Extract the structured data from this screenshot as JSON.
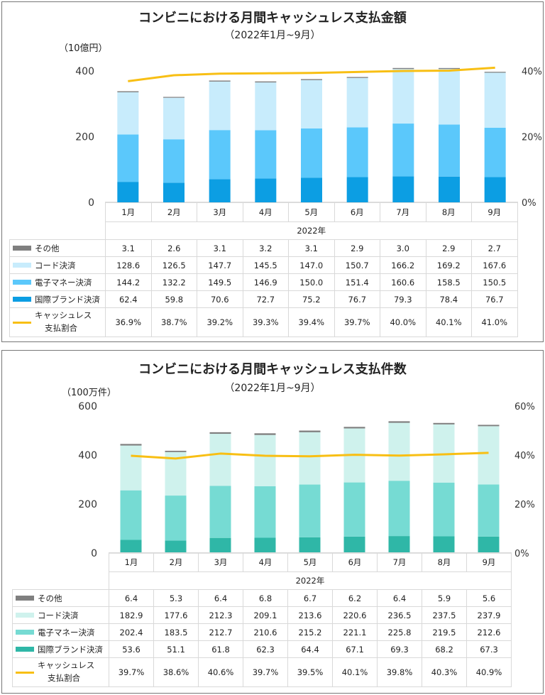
{
  "charts": [
    {
      "title": "コンビニにおける月間キャッシュレス支払金額",
      "subtitle": "（2022年1月~9月）",
      "unit_left": "（10億円）",
      "year_label": "2022年",
      "ylim": [
        0,
        400
      ],
      "yticks": [
        "0",
        "200",
        "400"
      ],
      "y2lim": [
        0,
        40
      ],
      "y2ticks": [
        "0%",
        "20%",
        "40%"
      ],
      "months": [
        "1月",
        "2月",
        "3月",
        "4月",
        "5月",
        "6月",
        "7月",
        "8月",
        "9月"
      ],
      "stack_order": [
        "国際ブランド決済",
        "電子マネー決済",
        "コード決済",
        "その他"
      ],
      "rows": [
        {
          "label": "その他",
          "color": "#7f7f7f",
          "kind": "bar",
          "cells": [
            "3.1",
            "2.6",
            "3.1",
            "3.2",
            "3.1",
            "2.9",
            "3.0",
            "2.9",
            "2.7"
          ]
        },
        {
          "label": "コード決済",
          "color": "#c8ecfc",
          "kind": "bar",
          "cells": [
            "128.6",
            "126.5",
            "147.7",
            "145.5",
            "147.0",
            "150.7",
            "166.2",
            "169.2",
            "167.6"
          ]
        },
        {
          "label": "電子マネー決済",
          "color": "#5bc8fb",
          "kind": "bar",
          "cells": [
            "144.2",
            "132.2",
            "149.5",
            "146.9",
            "150.0",
            "151.4",
            "160.6",
            "158.5",
            "150.5"
          ]
        },
        {
          "label": "国際ブランド決済",
          "color": "#0c9ee3",
          "kind": "bar",
          "cells": [
            "62.4",
            "59.8",
            "70.6",
            "72.7",
            "75.2",
            "76.7",
            "79.3",
            "78.4",
            "76.7"
          ]
        },
        {
          "label": "キャッシュレス|支払割合",
          "color": "#f8bf14",
          "kind": "line",
          "cells": [
            "36.9%",
            "38.7%",
            "39.2%",
            "39.3%",
            "39.4%",
            "39.7%",
            "40.0%",
            "40.1%",
            "41.0%"
          ]
        }
      ],
      "chart_data": {
        "type": "bar",
        "title": "コンビニにおける月間キャッシュレス支払金額",
        "ylabel": "（10億円）",
        "categories": [
          "1月",
          "2月",
          "3月",
          "4月",
          "5月",
          "6月",
          "7月",
          "8月",
          "9月"
        ],
        "ylim": [
          0,
          400
        ],
        "y2lim": [
          0,
          0.4
        ],
        "series": [
          {
            "name": "国際ブランド決済",
            "values": [
              62.4,
              59.8,
              70.6,
              72.7,
              75.2,
              76.7,
              79.3,
              78.4,
              76.7
            ]
          },
          {
            "name": "電子マネー決済",
            "values": [
              144.2,
              132.2,
              149.5,
              146.9,
              150.0,
              151.4,
              160.6,
              158.5,
              150.5
            ]
          },
          {
            "name": "コード決済",
            "values": [
              128.6,
              126.5,
              147.7,
              145.5,
              147.0,
              150.7,
              166.2,
              169.2,
              167.6
            ]
          },
          {
            "name": "その他",
            "values": [
              3.1,
              2.6,
              3.1,
              3.2,
              3.1,
              2.9,
              3.0,
              2.9,
              2.7
            ]
          },
          {
            "name": "キャッシュレス支払割合",
            "type": "line",
            "axis": "right",
            "values": [
              0.369,
              0.387,
              0.392,
              0.393,
              0.394,
              0.397,
              0.4,
              0.401,
              0.41
            ]
          }
        ]
      }
    },
    {
      "title": "コンビニにおける月間キャッシュレス支払件数",
      "subtitle": "（2022年1月~9月）",
      "unit_left": "（100万件）",
      "year_label": "2022年",
      "ylim": [
        0,
        600
      ],
      "yticks": [
        "0",
        "200",
        "400",
        "600"
      ],
      "y2lim": [
        0,
        60
      ],
      "y2ticks": [
        "0%",
        "20%",
        "40%",
        "60%"
      ],
      "months": [
        "1月",
        "2月",
        "3月",
        "4月",
        "5月",
        "6月",
        "7月",
        "8月",
        "9月"
      ],
      "stack_order": [
        "国際ブランド決済",
        "電子マネー決済",
        "コード決済",
        "その他"
      ],
      "rows": [
        {
          "label": "その他",
          "color": "#7f7f7f",
          "kind": "bar",
          "cells": [
            "6.4",
            "5.3",
            "6.4",
            "6.8",
            "6.7",
            "6.2",
            "6.4",
            "5.9",
            "5.6"
          ]
        },
        {
          "label": "コード決済",
          "color": "#cff2ed",
          "kind": "bar",
          "cells": [
            "182.9",
            "177.6",
            "212.3",
            "209.1",
            "213.6",
            "220.6",
            "236.5",
            "237.5",
            "237.9"
          ]
        },
        {
          "label": "電子マネー決済",
          "color": "#76dbd3",
          "kind": "bar",
          "cells": [
            "202.4",
            "183.5",
            "212.7",
            "210.6",
            "215.2",
            "221.1",
            "225.8",
            "219.5",
            "212.6"
          ]
        },
        {
          "label": "国際ブランド決済",
          "color": "#2fb7a7",
          "kind": "bar",
          "cells": [
            "53.6",
            "51.1",
            "61.8",
            "62.3",
            "64.4",
            "67.1",
            "69.3",
            "68.2",
            "67.3"
          ]
        },
        {
          "label": "キャッシュレス|支払割合",
          "color": "#f8bf14",
          "kind": "line",
          "cells": [
            "39.7%",
            "38.6%",
            "40.6%",
            "39.7%",
            "39.5%",
            "40.1%",
            "39.8%",
            "40.3%",
            "40.9%"
          ]
        }
      ],
      "chart_data": {
        "type": "bar",
        "title": "コンビニにおける月間キャッシュレス支払件数",
        "ylabel": "（100万件）",
        "categories": [
          "1月",
          "2月",
          "3月",
          "4月",
          "5月",
          "6月",
          "7月",
          "8月",
          "9月"
        ],
        "ylim": [
          0,
          600
        ],
        "y2lim": [
          0,
          0.6
        ],
        "series": [
          {
            "name": "国際ブランド決済",
            "values": [
              53.6,
              51.1,
              61.8,
              62.3,
              64.4,
              67.1,
              69.3,
              68.2,
              67.3
            ]
          },
          {
            "name": "電子マネー決済",
            "values": [
              202.4,
              183.5,
              212.7,
              210.6,
              215.2,
              221.1,
              225.8,
              219.5,
              212.6
            ]
          },
          {
            "name": "コード決済",
            "values": [
              182.9,
              177.6,
              212.3,
              209.1,
              213.6,
              220.6,
              236.5,
              237.5,
              237.9
            ]
          },
          {
            "name": "その他",
            "values": [
              6.4,
              5.3,
              6.4,
              6.8,
              6.7,
              6.2,
              6.4,
              5.9,
              5.6
            ]
          },
          {
            "name": "キャッシュレス支払割合",
            "type": "line",
            "axis": "right",
            "values": [
              0.397,
              0.386,
              0.406,
              0.397,
              0.395,
              0.401,
              0.398,
              0.403,
              0.409
            ]
          }
        ]
      }
    }
  ]
}
